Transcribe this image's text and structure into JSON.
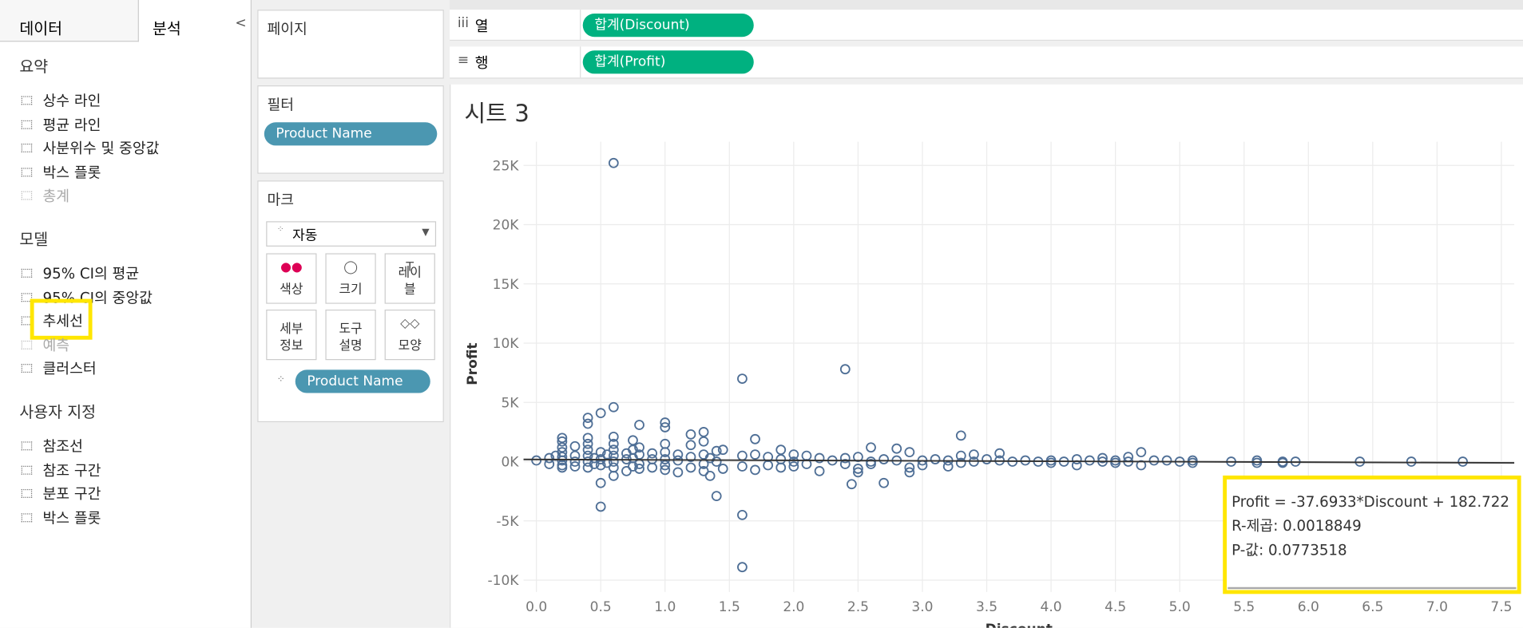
{
  "sidebar": {
    "tabs": [
      "데이터",
      "분석"
    ],
    "sections": [
      {
        "title": "요약",
        "items": [
          {
            "label": "상수 라인"
          },
          {
            "label": "평균 라인"
          },
          {
            "label": "사분위수 및 중앙값"
          },
          {
            "label": "박스 플롯"
          },
          {
            "label": "총계",
            "enabled": false
          }
        ]
      },
      {
        "title": "모델",
        "items": [
          {
            "label": "95% CI의 평균"
          },
          {
            "label": "95% CI의 중앙값"
          },
          {
            "label": "추세선",
            "highlight": true
          },
          {
            "label": "예측",
            "enabled": false
          },
          {
            "label": "클러스터"
          }
        ]
      },
      {
        "title": "사용자 지정",
        "items": [
          {
            "label": "참조선"
          },
          {
            "label": "참조 구간"
          },
          {
            "label": "분포 구간"
          },
          {
            "label": "박스 플롯"
          }
        ]
      }
    ]
  },
  "pages_card": {
    "title": "페이지"
  },
  "filters_card": {
    "title": "필터",
    "pills": [
      "Product Name"
    ]
  },
  "marks_card": {
    "title": "마크",
    "mark_type": "자동",
    "buttons": [
      "색상",
      "크기",
      "레이블",
      "세부 정보",
      "도구 설명",
      "모양"
    ],
    "pills": [
      "Product Name"
    ]
  },
  "shelves": {
    "columns": {
      "label": "열",
      "pill": "합계(Discount)"
    },
    "rows": {
      "label": "행",
      "pill": "합계(Profit)"
    }
  },
  "chart_data": {
    "type": "scatter",
    "title": "시트 3",
    "xlabel": "Discount",
    "ylabel": "Profit",
    "color": "#4f6f96",
    "grid": true,
    "xlim": [
      -0.1,
      7.6
    ],
    "xticks": [
      {
        "value": 0,
        "label": "0.0"
      },
      0.5,
      {
        "value": 1,
        "label": "1.0"
      },
      1.5,
      {
        "value": 2,
        "label": "2.0"
      },
      2.5,
      {
        "value": 3,
        "label": "3.0"
      },
      3.5,
      {
        "value": 4,
        "label": "4.0"
      },
      4.5,
      {
        "value": 5,
        "label": "5.0"
      },
      5.5,
      {
        "value": 6,
        "label": "6.0"
      },
      6.5,
      {
        "value": 7,
        "label": "7.0"
      },
      7.5
    ],
    "ylim": [
      -11000,
      27000
    ],
    "yticks": [
      {
        "value": -10000,
        "label": "-10K"
      },
      {
        "value": -5000,
        "label": "-5K"
      },
      {
        "value": 0,
        "label": "0K"
      },
      {
        "value": 5000,
        "label": "5K"
      },
      {
        "value": 10000,
        "label": "10K"
      },
      {
        "value": 15000,
        "label": "15K"
      },
      {
        "value": 20000,
        "label": "20K"
      },
      {
        "value": 25000,
        "label": "25K"
      }
    ],
    "x": [
      0,
      0.1,
      0.1,
      0.15,
      0.2,
      0.2,
      0.2,
      0.2,
      0.2,
      0.2,
      0.2,
      0.2,
      0.3,
      0.3,
      0.3,
      0.3,
      0.4,
      0.4,
      0.4,
      0.4,
      0.4,
      0.4,
      0.4,
      0.4,
      0.45,
      0.45,
      0.5,
      0.5,
      0.5,
      0.5,
      0.5,
      0.5,
      0.55,
      0.55,
      0.6,
      0.6,
      0.6,
      0.6,
      0.6,
      0.6,
      0.6,
      0.6,
      0.6,
      0.7,
      0.7,
      0.7,
      0.75,
      0.75,
      0.75,
      0.75,
      0.8,
      0.8,
      0.8,
      0.8,
      0.8,
      0.9,
      0.9,
      0.9,
      1.0,
      1.0,
      1.0,
      1.0,
      1.0,
      1.0,
      1.0,
      1.1,
      1.1,
      1.1,
      1.2,
      1.2,
      1.2,
      1.2,
      1.3,
      1.3,
      1.3,
      1.3,
      1.3,
      1.35,
      1.35,
      1.4,
      1.4,
      1.4,
      1.45,
      1.45,
      1.6,
      1.6,
      1.6,
      1.6,
      1.6,
      1.7,
      1.7,
      1.7,
      1.8,
      1.8,
      1.9,
      1.9,
      1.9,
      2.0,
      2.0,
      2.0,
      2.1,
      2.1,
      2.2,
      2.2,
      2.3,
      2.4,
      2.4,
      2.4,
      2.45,
      2.5,
      2.5,
      2.5,
      2.6,
      2.6,
      2.6,
      2.7,
      2.7,
      2.8,
      2.8,
      2.9,
      2.9,
      2.9,
      3.0,
      3.0,
      3.1,
      3.2,
      3.2,
      3.3,
      3.3,
      3.3,
      3.4,
      3.4,
      3.5,
      3.6,
      3.6,
      3.7,
      3.8,
      3.9,
      4.0,
      4.0,
      4.1,
      4.2,
      4.2,
      4.3,
      4.4,
      4.4,
      4.5,
      4.5,
      4.6,
      4.6,
      4.7,
      4.7,
      4.8,
      4.9,
      5.0,
      5.1,
      5.1,
      5.4,
      5.6,
      5.6,
      5.8,
      5.8,
      5.9,
      6.4,
      6.8,
      7.2
    ],
    "values": [
      100,
      -200,
      300,
      500,
      2000,
      1700,
      1200,
      800,
      400,
      100,
      -300,
      -500,
      1300,
      500,
      0,
      -400,
      3700,
      3200,
      2000,
      1500,
      1000,
      500,
      0,
      -500,
      -200,
      300,
      4100,
      -1800,
      -3800,
      800,
      200,
      -300,
      600,
      -100,
      25200,
      4600,
      2100,
      1500,
      1000,
      500,
      0,
      -500,
      -1200,
      700,
      -800,
      200,
      1800,
      1000,
      300,
      -400,
      3100,
      1200,
      600,
      -200,
      -600,
      700,
      -500,
      200,
      3300,
      2900,
      1500,
      800,
      200,
      -300,
      -700,
      600,
      -900,
      100,
      2300,
      1400,
      400,
      -500,
      2500,
      1700,
      600,
      -200,
      -800,
      300,
      -1200,
      -2900,
      900,
      0,
      1000,
      -600,
      7000,
      -4500,
      -8900,
      500,
      -400,
      1900,
      600,
      -700,
      400,
      -300,
      1000,
      200,
      -500,
      600,
      0,
      -400,
      500,
      -200,
      300,
      -800,
      100,
      7800,
      300,
      -200,
      -1900,
      400,
      -600,
      -900,
      1200,
      0,
      -200,
      -1800,
      200,
      1100,
      100,
      800,
      -500,
      -900,
      100,
      -300,
      200,
      100,
      -400,
      2200,
      500,
      -100,
      600,
      0,
      200,
      700,
      100,
      0,
      100,
      0,
      100,
      -100,
      0,
      200,
      -300,
      100,
      0,
      300,
      100,
      -100,
      400,
      0,
      800,
      -300,
      100,
      100,
      0,
      100,
      -100,
      0,
      100,
      -100,
      0,
      -100,
      0,
      0,
      0,
      0
    ],
    "trendline": {
      "slope": -37.6933,
      "intercept": 182.722
    },
    "annotation": [
      "Profit = -37.6933*Discount + 182.722",
      "R-제곱: 0.0018849",
      "P-값: 0.0773518"
    ]
  }
}
